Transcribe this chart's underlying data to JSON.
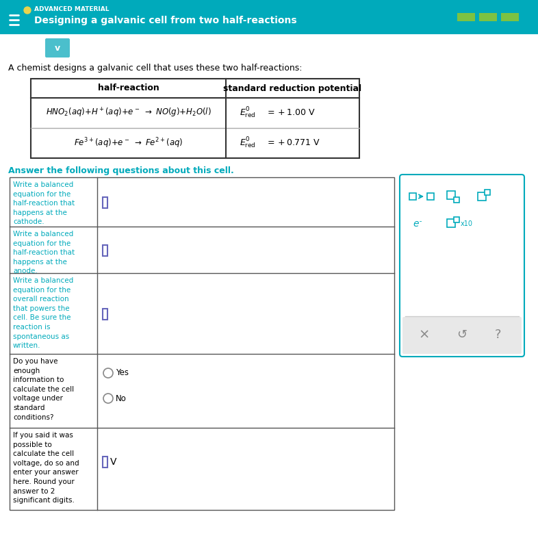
{
  "header_bg": "#00AABB",
  "header_text_color": "#FFFFFF",
  "header_dot_color": "#E8D44D",
  "header_label": "ADVANCED MATERIAL",
  "header_title": "Designing a galvanic cell from two half-reactions",
  "body_bg": "#FFFFFF",
  "intro_text": "A chemist designs a galvanic cell that uses these two half-reactions:",
  "answer_label": "Answer the following questions about this cell.",
  "table_header_col1": "half-reaction",
  "table_header_col2": "standard reduction potential",
  "q1_label": "Write a balanced\nequation for the\nhalf-reaction that\nhappens at the\ncathode.",
  "q2_label": "Write a balanced\nequation for the\nhalf-reaction that\nhappens at the\nanode.",
  "q3_label": "Write a balanced\nequation for the\noverall reaction\nthat powers the\ncell. Be sure the\nreaction is\nspontaneous as\nwritten.",
  "q4_label": "Do you have\nenough\ninformation to\ncalculate the cell\nvoltage under\nstandard\nconditions?",
  "q5_label": "If you said it was\npossible to\ncalculate the cell\nvoltage, do so and\nenter your answer\nhere. Round your\nanswer to 2\nsignificant digits.",
  "q_label_color": "#00AABB",
  "q4_yes": "Yes",
  "q4_no": "No",
  "q5_unit": "V",
  "teal": "#00AABB",
  "input_box_color": "#6666BB",
  "green_bar": "#7DC242",
  "chevron_bg": "#4BBFCC",
  "toolbar_border": "#00AABB",
  "toolbar_bottom_bg": "#E8E8E8",
  "gray_text": "#888888"
}
